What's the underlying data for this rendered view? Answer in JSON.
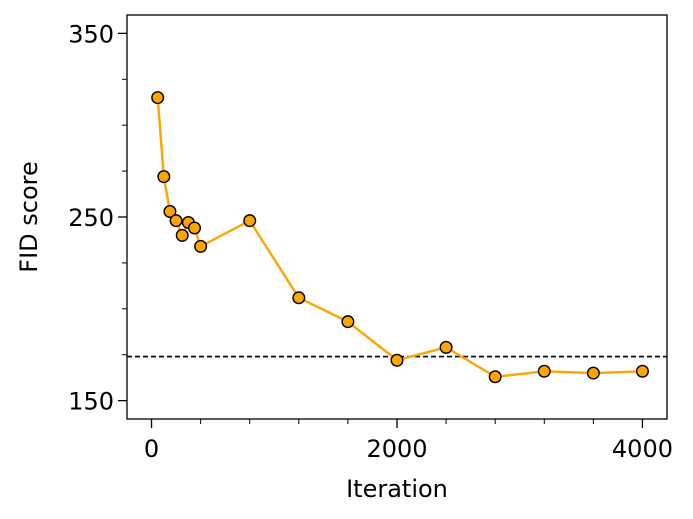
{
  "chart_data": {
    "type": "line",
    "title": "",
    "xlabel": "Iteration",
    "ylabel": "FID score",
    "xlim": [
      -200,
      4200
    ],
    "ylim": [
      140,
      360
    ],
    "x_major_ticks": [
      0,
      2000,
      4000
    ],
    "x_tick_labels": [
      "0",
      "2000",
      "4000"
    ],
    "x_minor_ticks": [
      400,
      800,
      1200,
      1600,
      2400,
      2800,
      3200,
      3600
    ],
    "y_major_ticks": [
      150,
      250,
      350
    ],
    "y_tick_labels": [
      "150",
      "250",
      "350"
    ],
    "y_minor_ticks": [
      175,
      200,
      225,
      275,
      300,
      325
    ],
    "grid": false,
    "legend": "none",
    "series": [
      {
        "x": [
          50,
          100,
          150,
          200,
          250,
          300,
          350,
          400,
          800,
          1200,
          1600,
          2000,
          2400,
          2800,
          3200,
          3600,
          4000
        ],
        "y": [
          315,
          272,
          253,
          248,
          240,
          247,
          244,
          234,
          248,
          206,
          193,
          172,
          179,
          163,
          166,
          165,
          166
        ],
        "color": "#ffa500",
        "marker_edge": "#000000"
      }
    ],
    "reference_line": {
      "y": 174,
      "style": "dashed",
      "color": "#000000"
    }
  }
}
